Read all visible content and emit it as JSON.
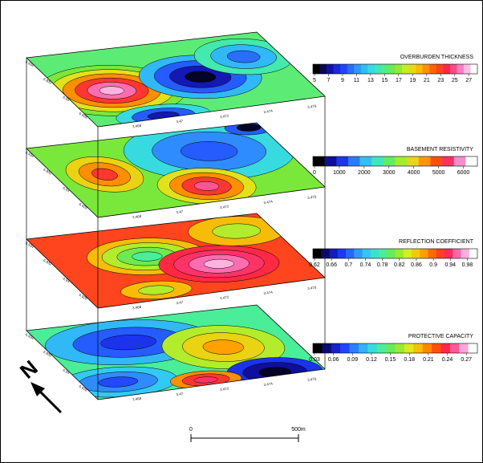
{
  "layers": [
    {
      "title": "OVERBURDEN THICKNESS",
      "ticks": [
        "5",
        "7",
        "9",
        "11",
        "13",
        "15",
        "17",
        "19",
        "21",
        "23",
        "25",
        "27"
      ]
    },
    {
      "title": "BASEMENT RESISTIVITY",
      "ticks": [
        "0",
        "1000",
        "2000",
        "3000",
        "4000",
        "5000",
        "6000"
      ]
    },
    {
      "title": "REFLECTION COEFFICIENT",
      "ticks": [
        "0.62",
        "0.66",
        "0.7",
        "0.74",
        "0.78",
        "0.82",
        "0.86",
        "0.9",
        "0.94",
        "0.98"
      ]
    },
    {
      "title": "PROTECTIVE CAPACITY",
      "ticks": [
        "0.03",
        "0.06",
        "0.09",
        "0.12",
        "0.15",
        "0.18",
        "0.21",
        "0.24",
        "0.27"
      ]
    }
  ],
  "x_labels": [
    "3.468",
    "3.47",
    "3.472",
    "3.474",
    "3.476"
  ],
  "y_labels": [
    "6.934",
    "6.932",
    "6.93",
    "6.928"
  ],
  "scale_bar": {
    "start": "0",
    "end": "500m"
  },
  "north": "N"
}
